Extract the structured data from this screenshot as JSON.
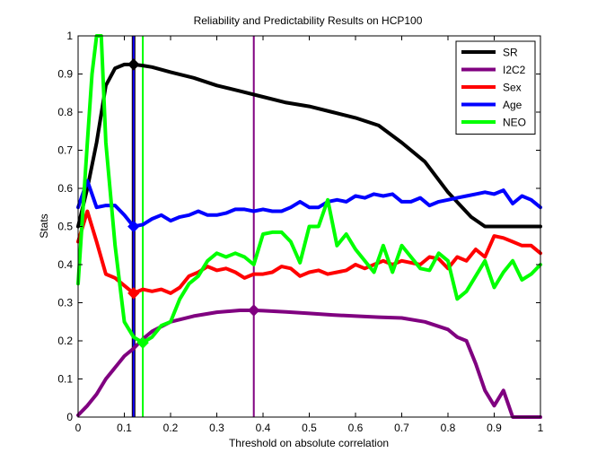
{
  "chart_data": {
    "type": "line",
    "title": "Reliability and Predictability Results on HCP100",
    "xlabel": "Threshold on absolute correlation",
    "ylabel": "Stats",
    "xlim": [
      0,
      1
    ],
    "ylim": [
      0,
      1
    ],
    "xticks": [
      "0",
      "0.1",
      "0.2",
      "0.3",
      "0.4",
      "0.5",
      "0.6",
      "0.7",
      "0.8",
      "0.9",
      "1"
    ],
    "yticks": [
      "0",
      "0.1",
      "0.2",
      "0.3",
      "0.4",
      "0.5",
      "0.6",
      "0.7",
      "0.8",
      "0.9",
      "1"
    ],
    "grid": false,
    "legend_position": "top-right",
    "series": [
      {
        "name": "SR",
        "color": "#000000",
        "x": [
          0,
          0.02,
          0.04,
          0.06,
          0.08,
          0.1,
          0.12,
          0.14,
          0.16,
          0.2,
          0.25,
          0.3,
          0.35,
          0.4,
          0.45,
          0.5,
          0.55,
          0.6,
          0.65,
          0.7,
          0.75,
          0.8,
          0.85,
          0.88,
          0.9,
          0.95,
          1
        ],
        "y": [
          0.5,
          0.6,
          0.72,
          0.87,
          0.915,
          0.925,
          0.925,
          0.922,
          0.918,
          0.905,
          0.89,
          0.87,
          0.855,
          0.84,
          0.825,
          0.815,
          0.8,
          0.785,
          0.765,
          0.72,
          0.67,
          0.59,
          0.525,
          0.5,
          0.5,
          0.5,
          0.5
        ]
      },
      {
        "name": "I2C2",
        "color": "#800080",
        "x": [
          0,
          0.02,
          0.04,
          0.06,
          0.08,
          0.1,
          0.12,
          0.14,
          0.16,
          0.2,
          0.25,
          0.3,
          0.35,
          0.38,
          0.4,
          0.45,
          0.5,
          0.55,
          0.6,
          0.65,
          0.7,
          0.75,
          0.8,
          0.82,
          0.84,
          0.86,
          0.88,
          0.9,
          0.92,
          0.94,
          0.96,
          1
        ],
        "y": [
          0.005,
          0.03,
          0.06,
          0.1,
          0.13,
          0.16,
          0.18,
          0.205,
          0.225,
          0.25,
          0.265,
          0.275,
          0.28,
          0.28,
          0.279,
          0.276,
          0.272,
          0.268,
          0.265,
          0.262,
          0.26,
          0.25,
          0.23,
          0.21,
          0.2,
          0.14,
          0.07,
          0.03,
          0.07,
          0,
          0,
          0
        ]
      },
      {
        "name": "Sex",
        "color": "#ff0000",
        "x": [
          0,
          0.02,
          0.04,
          0.06,
          0.08,
          0.1,
          0.12,
          0.14,
          0.16,
          0.18,
          0.2,
          0.22,
          0.24,
          0.26,
          0.28,
          0.3,
          0.32,
          0.34,
          0.36,
          0.38,
          0.4,
          0.42,
          0.44,
          0.46,
          0.48,
          0.5,
          0.52,
          0.54,
          0.56,
          0.58,
          0.6,
          0.62,
          0.64,
          0.66,
          0.68,
          0.7,
          0.72,
          0.74,
          0.76,
          0.78,
          0.8,
          0.82,
          0.84,
          0.86,
          0.88,
          0.9,
          0.92,
          0.94,
          0.96,
          0.98,
          1
        ],
        "y": [
          0.46,
          0.54,
          0.46,
          0.375,
          0.365,
          0.345,
          0.325,
          0.335,
          0.33,
          0.335,
          0.325,
          0.34,
          0.37,
          0.38,
          0.395,
          0.385,
          0.39,
          0.38,
          0.365,
          0.375,
          0.375,
          0.38,
          0.395,
          0.39,
          0.37,
          0.38,
          0.385,
          0.375,
          0.38,
          0.385,
          0.4,
          0.39,
          0.4,
          0.41,
          0.4,
          0.41,
          0.405,
          0.4,
          0.42,
          0.415,
          0.39,
          0.42,
          0.41,
          0.44,
          0.42,
          0.475,
          0.47,
          0.46,
          0.45,
          0.45,
          0.43
        ]
      },
      {
        "name": "Age",
        "color": "#0000ff",
        "x": [
          0,
          0.02,
          0.04,
          0.06,
          0.08,
          0.1,
          0.12,
          0.14,
          0.16,
          0.18,
          0.2,
          0.22,
          0.24,
          0.26,
          0.28,
          0.3,
          0.32,
          0.34,
          0.36,
          0.38,
          0.4,
          0.42,
          0.44,
          0.46,
          0.48,
          0.5,
          0.52,
          0.54,
          0.56,
          0.58,
          0.6,
          0.62,
          0.64,
          0.66,
          0.68,
          0.7,
          0.72,
          0.74,
          0.76,
          0.78,
          0.8,
          0.82,
          0.84,
          0.86,
          0.88,
          0.9,
          0.92,
          0.94,
          0.96,
          0.98,
          1
        ],
        "y": [
          0.55,
          0.62,
          0.55,
          0.555,
          0.555,
          0.53,
          0.5,
          0.505,
          0.52,
          0.53,
          0.515,
          0.525,
          0.53,
          0.54,
          0.53,
          0.53,
          0.535,
          0.545,
          0.545,
          0.54,
          0.545,
          0.54,
          0.54,
          0.55,
          0.565,
          0.55,
          0.55,
          0.565,
          0.57,
          0.565,
          0.58,
          0.575,
          0.585,
          0.58,
          0.585,
          0.565,
          0.565,
          0.575,
          0.555,
          0.565,
          0.57,
          0.575,
          0.58,
          0.585,
          0.59,
          0.585,
          0.595,
          0.56,
          0.58,
          0.57,
          0.55
        ]
      },
      {
        "name": "NEO",
        "color": "#00ff00",
        "x": [
          0,
          0.02,
          0.03,
          0.04,
          0.05,
          0.06,
          0.08,
          0.1,
          0.12,
          0.14,
          0.16,
          0.18,
          0.2,
          0.22,
          0.24,
          0.26,
          0.28,
          0.3,
          0.32,
          0.34,
          0.36,
          0.38,
          0.4,
          0.42,
          0.44,
          0.46,
          0.48,
          0.5,
          0.52,
          0.54,
          0.56,
          0.58,
          0.6,
          0.62,
          0.64,
          0.66,
          0.68,
          0.7,
          0.72,
          0.74,
          0.76,
          0.78,
          0.8,
          0.82,
          0.84,
          0.86,
          0.88,
          0.9,
          0.92,
          0.94,
          0.96,
          0.98,
          1
        ],
        "y": [
          0.35,
          0.72,
          0.9,
          1.0,
          1.0,
          0.72,
          0.45,
          0.25,
          0.21,
          0.195,
          0.21,
          0.24,
          0.25,
          0.31,
          0.35,
          0.37,
          0.41,
          0.43,
          0.42,
          0.43,
          0.42,
          0.4,
          0.48,
          0.485,
          0.485,
          0.46,
          0.405,
          0.5,
          0.5,
          0.57,
          0.45,
          0.48,
          0.44,
          0.41,
          0.38,
          0.45,
          0.38,
          0.45,
          0.42,
          0.39,
          0.385,
          0.43,
          0.41,
          0.31,
          0.33,
          0.37,
          0.41,
          0.34,
          0.38,
          0.41,
          0.36,
          0.375,
          0.4
        ]
      }
    ],
    "vertical_lines": [
      {
        "x": 0.12,
        "color": "#000000",
        "width": 4
      },
      {
        "x": 0.12,
        "color": "#ff0000",
        "width": 2
      },
      {
        "x": 0.12,
        "color": "#0000ff",
        "width": 2
      },
      {
        "x": 0.14,
        "color": "#00ff00",
        "width": 2
      },
      {
        "x": 0.38,
        "color": "#800080",
        "width": 2
      }
    ],
    "markers": [
      {
        "series": "SR",
        "x": 0.12,
        "y": 0.925,
        "color": "#000000"
      },
      {
        "series": "I2C2",
        "x": 0.38,
        "y": 0.28,
        "color": "#800080"
      },
      {
        "series": "Sex",
        "x": 0.12,
        "y": 0.325,
        "color": "#ff0000"
      },
      {
        "series": "Age",
        "x": 0.12,
        "y": 0.5,
        "color": "#0000ff"
      },
      {
        "series": "NEO",
        "x": 0.14,
        "y": 0.195,
        "color": "#00ff00"
      }
    ]
  }
}
